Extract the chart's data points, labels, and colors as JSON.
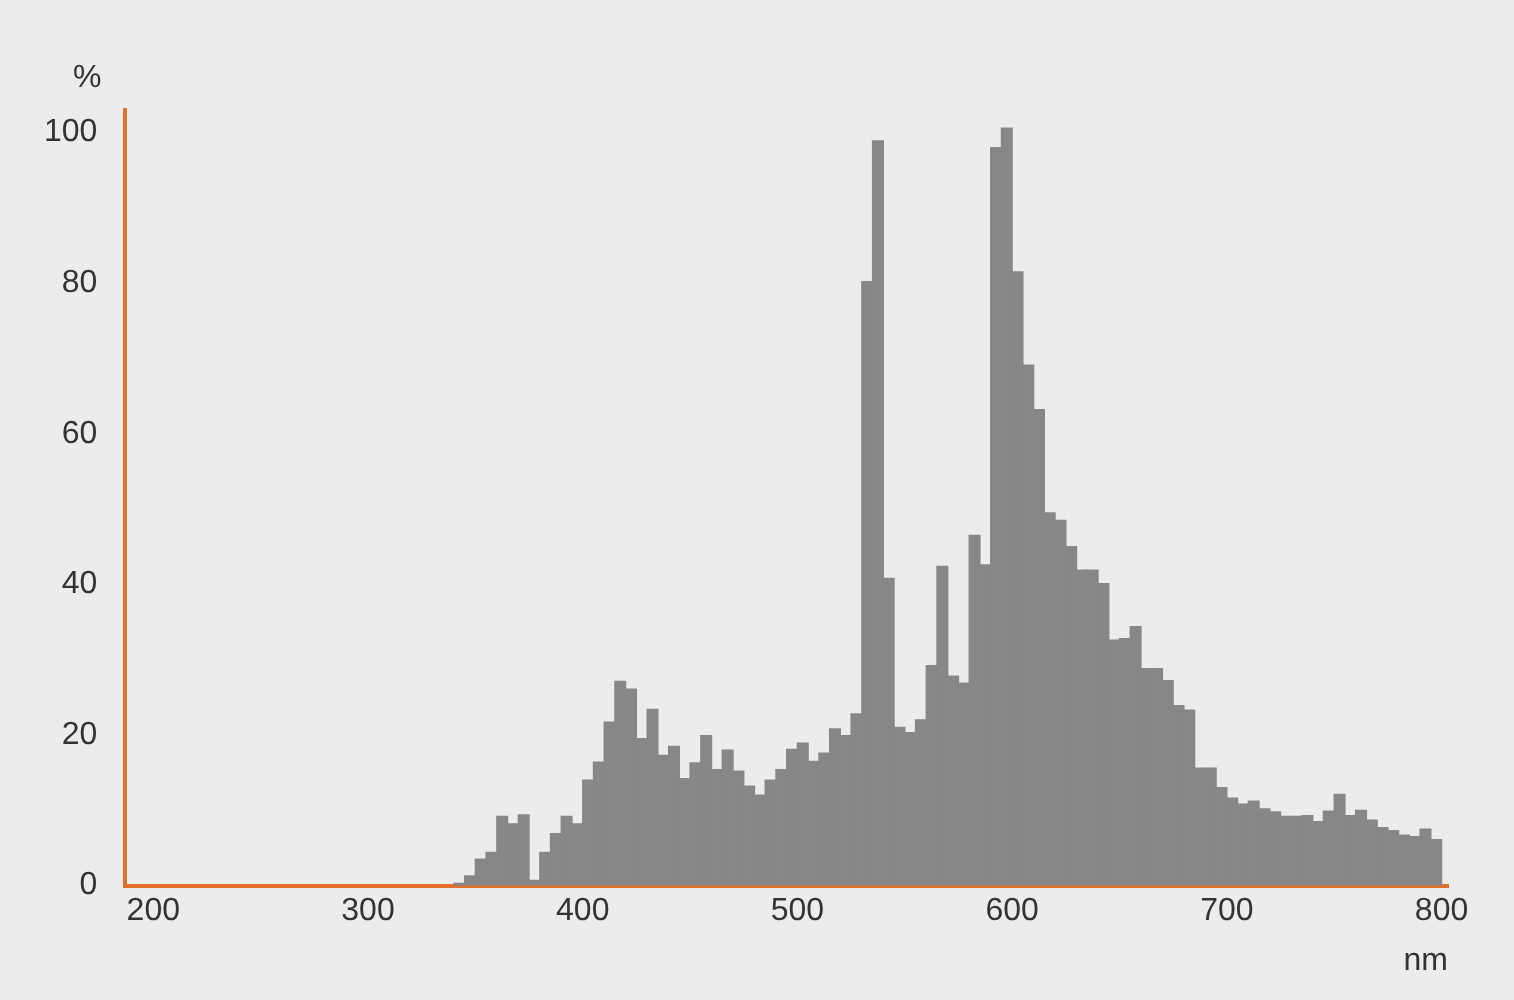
{
  "chart_data": {
    "type": "histogram",
    "xlabel": "nm",
    "ylabel": "%",
    "bins": [
      340,
      345,
      350,
      355,
      360,
      365,
      370,
      375,
      380,
      385,
      390,
      395,
      400,
      405,
      410,
      415,
      420,
      425,
      430,
      435,
      440,
      445,
      450,
      455,
      460,
      465,
      470,
      475,
      480,
      485,
      490,
      495,
      500,
      505,
      510,
      515,
      520,
      525,
      530,
      535,
      540,
      545,
      550,
      555,
      560,
      565,
      570,
      575,
      580,
      585,
      590,
      595,
      600,
      605,
      610,
      615,
      620,
      625,
      630,
      635,
      640,
      645,
      650,
      655,
      660,
      665,
      670,
      675,
      680,
      685,
      690,
      695,
      700,
      705,
      710,
      715,
      720,
      725,
      730,
      735,
      740,
      745,
      750,
      755,
      760,
      765,
      770,
      775,
      780,
      785,
      790,
      795,
      800
    ],
    "values": [
      0.3,
      1.3,
      3.5,
      4.4,
      9.2,
      8.2,
      9.4,
      0.7,
      4.4,
      6.9,
      9.2,
      8.2,
      14,
      16.4,
      21.7,
      27.1,
      26.1,
      19.5,
      23.4,
      17.3,
      18.5,
      14.2,
      16.3,
      19.9,
      15.4,
      18,
      15.2,
      13.2,
      12,
      14,
      15.4,
      18.1,
      18.9,
      16.5,
      17.6,
      20.8,
      19.9,
      22.8,
      80.2,
      98.9,
      40.8,
      21,
      20.3,
      22,
      29.2,
      42.4,
      27.8,
      26.9,
      46.5,
      42.6,
      98,
      100.6,
      81.5,
      69.1,
      63.2,
      49.5,
      48.5,
      45,
      41.9,
      41.9,
      40.1,
      32.6,
      32.8,
      34.4,
      28.8,
      28.8,
      27.2,
      23.9,
      23.3,
      15.6,
      15.6,
      13,
      11.6,
      10.8,
      11.2,
      10.2,
      9.8,
      9.2,
      9.2,
      9.3,
      8.5,
      9.9,
      12.1,
      9.3,
      10,
      8.7,
      7.7,
      7.3,
      6.7,
      6.5,
      7.5,
      6.1
    ],
    "color": "#878787",
    "xlim": [
      187,
      803
    ],
    "xticks": [
      200,
      300,
      400,
      500,
      600,
      700,
      800
    ],
    "ylim": [
      0,
      103
    ],
    "yticks": [
      0,
      20,
      40,
      60,
      80,
      100
    ]
  }
}
